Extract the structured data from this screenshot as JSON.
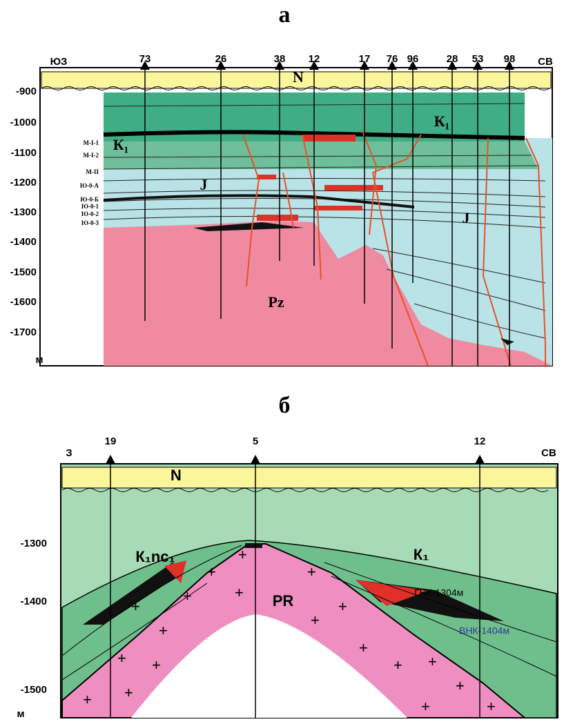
{
  "panel_a": {
    "label": "а",
    "direction_left": "ЮЗ",
    "direction_right": "СВ",
    "wells": [
      "73",
      "26",
      "38",
      "12",
      "17",
      "76",
      "96",
      "28",
      "53",
      "98"
    ],
    "depths": [
      "-900",
      "-1000",
      "-1100",
      "-1200",
      "-1300",
      "-1400",
      "-1500",
      "-1600",
      "-1700"
    ],
    "depth_unit": "м",
    "layers": [
      "М-I-1",
      "М-I-2",
      "М-II",
      "Ю-0-А",
      "Ю-0-Б",
      "Ю-0-1",
      "Ю-0-2",
      "Ю-0-3"
    ],
    "formations": [
      "N",
      "К₁",
      "К₁",
      "J",
      "J",
      "Pz"
    ]
  },
  "panel_b": {
    "label": "б",
    "direction_left": "З",
    "direction_right": "СВ",
    "wells": [
      "19",
      "5",
      "12"
    ],
    "depths": [
      "-1300",
      "-1400",
      "-1500"
    ],
    "depth_unit": "м",
    "formations": [
      "N",
      "К₁nc₁",
      "К₁",
      "PR"
    ],
    "contacts": [
      "ГНК-1304м",
      "ВНК-1404м"
    ]
  }
}
